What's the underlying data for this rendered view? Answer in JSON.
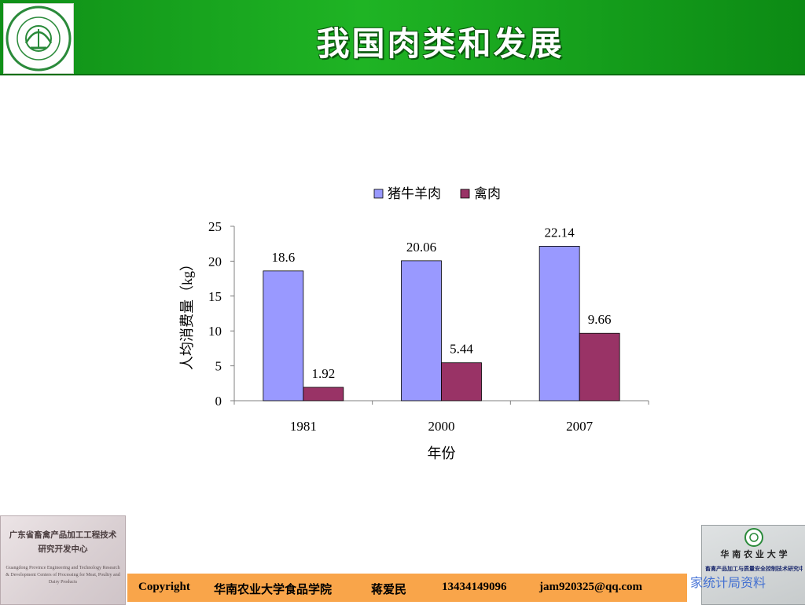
{
  "header": {
    "title": "我国肉类和发展",
    "logo": "university-seal-logo",
    "colors": {
      "band": "#1fb424",
      "title_text": "#ffffff"
    }
  },
  "chart_data": {
    "type": "bar",
    "categories": [
      "1981",
      "2000",
      "2007"
    ],
    "series": [
      {
        "name": "猪牛羊肉",
        "values": [
          18.6,
          20.06,
          22.14
        ],
        "color": "#9999ff",
        "labels": [
          "18.6",
          "20.06",
          "22.14"
        ]
      },
      {
        "name": "禽肉",
        "values": [
          1.92,
          5.44,
          9.66
        ],
        "color": "#993366",
        "labels": [
          "1.92",
          "5.44",
          "9.66"
        ]
      }
    ],
    "xlabel": "年份",
    "ylabel": "人均消费量（kg）",
    "ylim": [
      0,
      25
    ],
    "yticks": [
      "0",
      "5",
      "10",
      "15",
      "20",
      "25"
    ],
    "legend_position": "top",
    "grid": false
  },
  "footer": {
    "left_plaque": {
      "title": "广东省畜禽产品加工工程技术研究开发中心",
      "english": "Guangdong Province Engineering and Technology Research & Development Centers of Processing for Meat, Poultry and Dairy Products"
    },
    "bar": {
      "copyright": "Copyright",
      "school": "华南农业大学食品学院",
      "person": "蒋爱民",
      "phone": "13434149096",
      "email": "jam920325@qq.com",
      "color": "#f9a54a"
    },
    "right_plaque": {
      "title": "华 南 农 业 大 学",
      "subtitle": "畜禽产品加工与质量安全控制技术研究中心"
    },
    "watermark": "家统计局资料"
  }
}
